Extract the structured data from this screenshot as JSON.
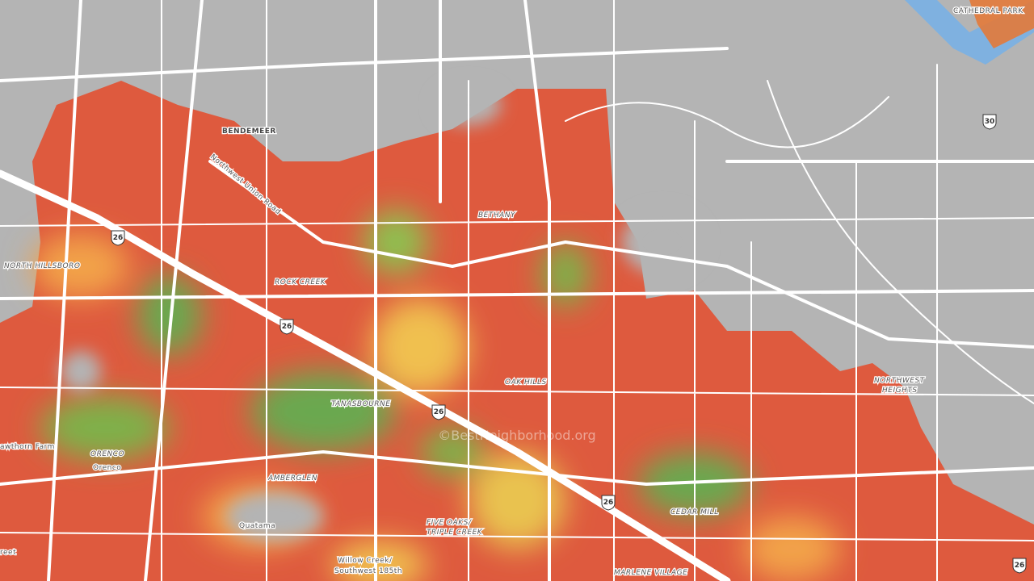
{
  "map": {
    "labels": [
      "CATHEDRAL PARK",
      "BENDEMEER",
      "Northwest Union Road",
      "NORTH HILLSBORO",
      "ROCK CREEK",
      "BETHANY",
      "OAK HILLS",
      "TANASBOURNE",
      "NORTHWEST",
      "HEIGHTS",
      "awthorn Farm",
      "ORENCO",
      "Orenco",
      "AMBERGLEN",
      "Quatama",
      "FIVE OAKS/",
      "TRIPLE CREEK",
      "CEDAR MILL",
      "MARLENE VILLAGE",
      "Willow Creek/",
      "Southwest 185th",
      "reet"
    ],
    "highway_shields": [
      "26",
      "26",
      "26",
      "26",
      "26",
      "30"
    ],
    "watermark": "©BestNeighborhood.org"
  }
}
